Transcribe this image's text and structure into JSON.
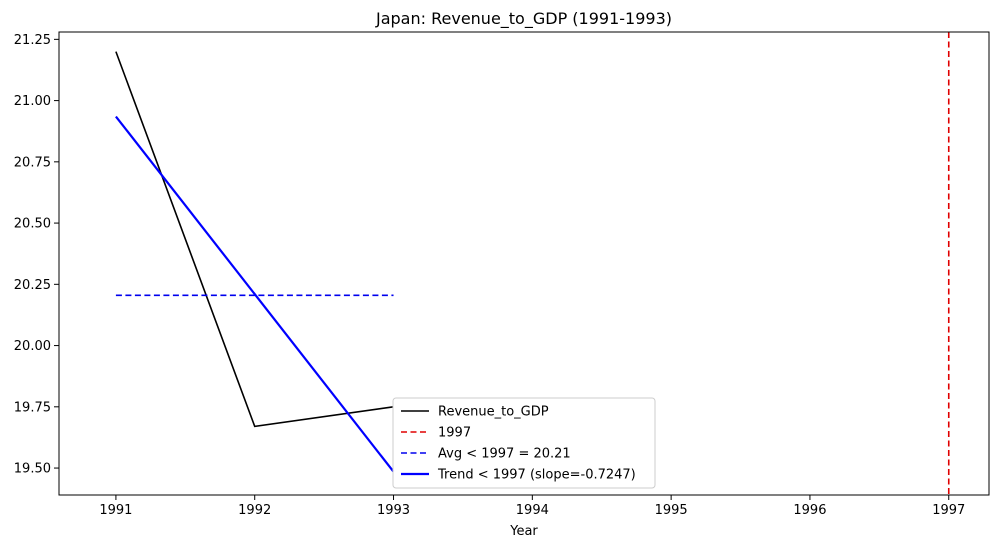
{
  "chart_data": {
    "type": "line",
    "title": "Japan: Revenue_to_GDP (1991-1993)",
    "xlabel": "Year",
    "ylabel": "",
    "xlim": [
      1990.59,
      1997.29
    ],
    "ylim": [
      19.39,
      21.28
    ],
    "x_ticks": [
      1991,
      1992,
      1993,
      1994,
      1995,
      1996,
      1997
    ],
    "y_ticks": [
      19.5,
      19.75,
      20.0,
      20.25,
      20.5,
      20.75,
      21.0,
      21.25
    ],
    "y_tick_labels": [
      "19.50",
      "19.75",
      "20.00",
      "20.25",
      "20.50",
      "20.75",
      "21.00",
      "21.25"
    ],
    "grid": false,
    "legend_position": "lower-center",
    "series": [
      {
        "name": "Revenue_to_GDP",
        "color": "#000000",
        "style": "solid",
        "x": [
          1991,
          1992,
          1993
        ],
        "values": [
          21.2,
          19.67,
          19.75
        ]
      },
      {
        "name": "Avg < 1997 = 20.21",
        "color": "#0000ee",
        "style": "dashed",
        "x": [
          1991,
          1993
        ],
        "values": [
          20.205,
          20.205
        ]
      },
      {
        "name": "Trend < 1997 (slope=-0.7247)",
        "color": "#0000ff",
        "style": "solid-thick",
        "x": [
          1991,
          1993
        ],
        "values": [
          20.935,
          19.485
        ]
      }
    ],
    "vlines": [
      {
        "name": "1997",
        "x": 1997,
        "color": "#e00000",
        "style": "dashed"
      }
    ],
    "legend": [
      {
        "label": "Revenue_to_GDP",
        "color": "#000000",
        "style": "solid"
      },
      {
        "label": "1997",
        "color": "#e00000",
        "style": "dashed"
      },
      {
        "label": "Avg < 1997 = 20.21",
        "color": "#0000ee",
        "style": "dashed"
      },
      {
        "label": "Trend < 1997 (slope=-0.7247)",
        "color": "#0000ff",
        "style": "solid-thick"
      }
    ]
  }
}
